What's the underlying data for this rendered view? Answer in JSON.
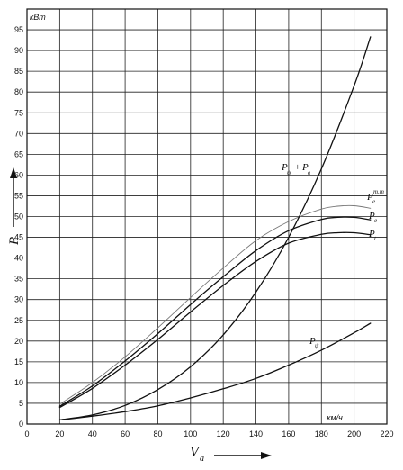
{
  "chart_data": {
    "type": "line",
    "xlabel_main": "V",
    "xlabel_sub": "a",
    "ylabel": "P",
    "y_unit": "кВт",
    "x_unit": "км/ч",
    "xlim": [
      0,
      220
    ],
    "ylim": [
      0,
      100
    ],
    "x_ticks": [
      "0",
      "20",
      "40",
      "60",
      "80",
      "100",
      "120",
      "140",
      "160",
      "180",
      "200",
      "220"
    ],
    "y_ticks": [
      "0",
      "5",
      "10",
      "15",
      "20",
      "25",
      "30",
      "35",
      "40",
      "45",
      "50",
      "55",
      "60",
      "65",
      "70",
      "75",
      "80",
      "85",
      "90",
      "95"
    ],
    "grid": true,
    "series": [
      {
        "key": "pt_tm",
        "label_main": "P",
        "label_sub": "e",
        "label_sup": "т.т",
        "color": "#777777",
        "x": [
          20,
          40,
          60,
          80,
          100,
          120,
          140,
          160,
          180,
          190,
          200,
          210
        ],
        "y": [
          4.8,
          10.0,
          16.2,
          23.2,
          30.5,
          37.6,
          44.2,
          48.8,
          51.8,
          52.5,
          52.6,
          52.0
        ]
      },
      {
        "key": "pe",
        "label_main": "P",
        "label_sub": "e",
        "color": "#111111",
        "x": [
          20,
          40,
          60,
          80,
          100,
          120,
          140,
          160,
          180,
          190,
          200,
          210
        ],
        "y": [
          4.3,
          9.2,
          15.2,
          21.8,
          28.8,
          35.5,
          41.8,
          46.6,
          49.3,
          49.8,
          49.8,
          49.2
        ]
      },
      {
        "key": "pt",
        "label_main": "P",
        "label_sub": "t",
        "color": "#111111",
        "x": [
          20,
          40,
          60,
          80,
          100,
          120,
          140,
          160,
          180,
          190,
          200,
          210
        ],
        "y": [
          4.0,
          8.6,
          14.2,
          20.4,
          27.0,
          33.4,
          39.2,
          43.6,
          45.7,
          46.1,
          46.1,
          45.6
        ]
      },
      {
        "key": "pw_pf",
        "label_main": "P",
        "label_sub1": "ψ",
        "label_plus": "+",
        "label_main2": "P",
        "label_sub2": "в",
        "color": "#111111",
        "x": [
          20,
          40,
          60,
          80,
          100,
          120,
          140,
          160,
          180,
          200,
          210
        ],
        "y": [
          1.0,
          2.2,
          4.5,
          8.3,
          13.8,
          21.5,
          31.8,
          45.0,
          61.5,
          81.5,
          93.3
        ]
      },
      {
        "key": "pw",
        "label_main": "P",
        "label_sub": "ψ",
        "color": "#111111",
        "x": [
          20,
          40,
          60,
          80,
          100,
          120,
          140,
          160,
          180,
          200,
          210
        ],
        "y": [
          1.0,
          1.9,
          3.0,
          4.4,
          6.3,
          8.5,
          11.0,
          14.2,
          17.8,
          22.0,
          24.3
        ]
      }
    ]
  }
}
